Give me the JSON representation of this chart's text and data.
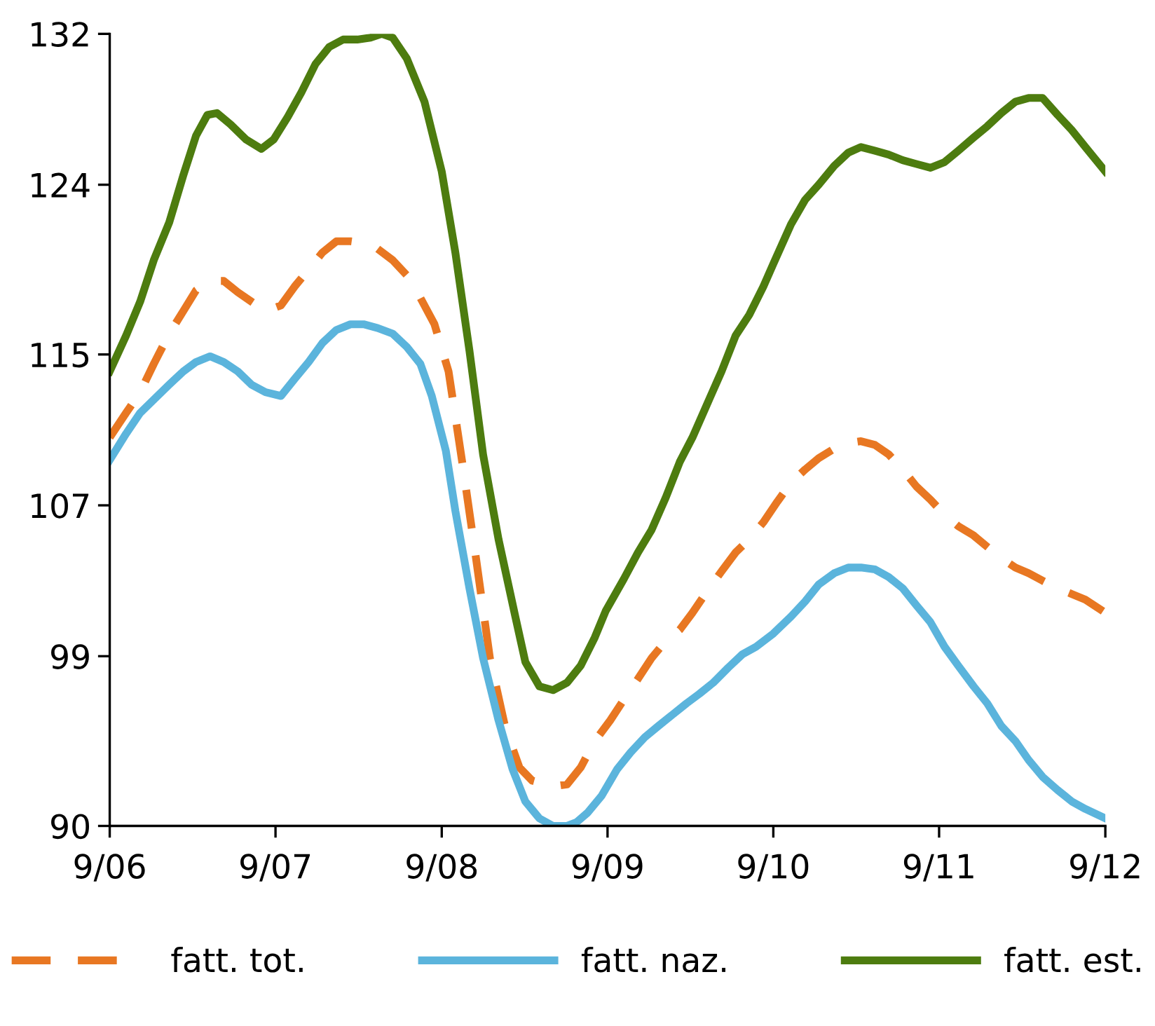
{
  "chart_data": {
    "type": "line",
    "xlim": [
      "2006-09-01",
      "2012-09-01"
    ],
    "ylim": [
      90,
      132
    ],
    "xticks": [
      {
        "value": "2006-09-01",
        "label": "9/06"
      },
      {
        "value": "2007-09-01",
        "label": "9/07"
      },
      {
        "value": "2008-09-01",
        "label": "9/08"
      },
      {
        "value": "2009-09-01",
        "label": "9/09"
      },
      {
        "value": "2010-09-01",
        "label": "9/10"
      },
      {
        "value": "2011-09-01",
        "label": "9/11"
      },
      {
        "value": "2012-09-01",
        "label": "9/12"
      }
    ],
    "yticks": [
      90,
      99,
      107,
      115,
      124,
      132
    ],
    "grid": false,
    "legend": "bottom",
    "marker": "none",
    "series": [
      {
        "name": "fatt. tot.",
        "color": "#e87722",
        "line_style": "dashed",
        "x": [
          "2006-09-01",
          "2006-10-07",
          "2006-11-07",
          "2006-12-07",
          "2007-01-10",
          "2007-02-10",
          "2007-03-10",
          "2007-04-10",
          "2007-05-10",
          "2007-06-10",
          "2007-07-10",
          "2007-08-10",
          "2007-09-13",
          "2007-10-13",
          "2007-11-13",
          "2007-12-13",
          "2008-01-13",
          "2008-02-13",
          "2008-03-13",
          "2008-04-13",
          "2008-05-16",
          "2008-06-16",
          "2008-07-16",
          "2008-08-16",
          "2008-09-16",
          "2008-10-16",
          "2008-11-16",
          "2008-12-16",
          "2009-01-19",
          "2009-02-19",
          "2009-03-19",
          "2009-05-04",
          "2009-06-04",
          "2009-07-04",
          "2009-08-04",
          "2009-09-07",
          "2009-10-07",
          "2009-11-07",
          "2009-12-07",
          "2010-01-07",
          "2010-02-07",
          "2010-03-07",
          "2010-04-07",
          "2010-05-10",
          "2010-06-10",
          "2010-07-10",
          "2010-08-10",
          "2010-09-10",
          "2010-10-10",
          "2010-11-10",
          "2010-12-10",
          "2011-01-13",
          "2011-02-13",
          "2011-03-13",
          "2011-04-13",
          "2011-05-13",
          "2011-06-13",
          "2011-07-13",
          "2011-08-13",
          "2011-09-13",
          "2011-10-13",
          "2011-11-16",
          "2011-12-16",
          "2012-01-16",
          "2012-02-16",
          "2012-03-16",
          "2012-04-16",
          "2012-05-19",
          "2012-06-19",
          "2012-07-19",
          "2012-09-01"
        ],
        "values": [
          110.6,
          111.9,
          113.0,
          114.5,
          116.1,
          117.3,
          118.4,
          118.9,
          118.9,
          118.3,
          117.8,
          117.3,
          117.6,
          118.6,
          119.5,
          120.4,
          121.0,
          121.0,
          120.9,
          120.6,
          120.0,
          119.2,
          118.0,
          116.6,
          114.1,
          109.3,
          104.1,
          98.9,
          95.2,
          93.1,
          92.4,
          92.1,
          92.2,
          93.1,
          94.5,
          95.6,
          96.7,
          97.8,
          98.9,
          99.8,
          100.4,
          101.3,
          102.4,
          103.5,
          104.5,
          105.2,
          106.1,
          107.2,
          108.2,
          108.9,
          109.5,
          110.0,
          110.3,
          110.4,
          110.2,
          109.7,
          108.9,
          108.0,
          107.3,
          106.5,
          105.9,
          105.4,
          104.8,
          104.2,
          103.7,
          103.4,
          103.0,
          102.6,
          102.3,
          102.0,
          101.3
        ]
      },
      {
        "name": "fatt. naz.",
        "color": "#5bb4dc",
        "line_style": "solid",
        "x": [
          "2006-09-01",
          "2006-10-07",
          "2006-11-07",
          "2006-12-07",
          "2007-01-10",
          "2007-02-10",
          "2007-03-10",
          "2007-04-10",
          "2007-05-10",
          "2007-06-10",
          "2007-07-10",
          "2007-08-10",
          "2007-09-13",
          "2007-10-13",
          "2007-11-13",
          "2007-12-13",
          "2008-01-13",
          "2008-02-13",
          "2008-03-13",
          "2008-04-13",
          "2008-05-16",
          "2008-06-16",
          "2008-07-16",
          "2008-08-10",
          "2008-09-10",
          "2008-10-01",
          "2008-11-01",
          "2008-12-01",
          "2009-01-04",
          "2009-02-04",
          "2009-03-04",
          "2009-04-04",
          "2009-05-04",
          "2009-06-04",
          "2009-06-25",
          "2009-07-19",
          "2009-08-19",
          "2009-09-22",
          "2009-10-22",
          "2009-11-22",
          "2009-12-22",
          "2010-01-22",
          "2010-02-22",
          "2010-03-22",
          "2010-04-22",
          "2010-05-25",
          "2010-06-25",
          "2010-07-25",
          "2010-09-01",
          "2010-10-10",
          "2010-11-10",
          "2010-12-10",
          "2011-01-13",
          "2011-02-13",
          "2011-03-13",
          "2011-04-13",
          "2011-05-13",
          "2011-06-13",
          "2011-07-13",
          "2011-08-13",
          "2011-09-13",
          "2011-10-13",
          "2011-11-16",
          "2011-12-16",
          "2012-01-16",
          "2012-02-16",
          "2012-03-16",
          "2012-04-16",
          "2012-05-19",
          "2012-06-19",
          "2012-07-19",
          "2012-09-01"
        ],
        "values": [
          109.4,
          110.8,
          111.9,
          112.6,
          113.4,
          114.1,
          114.6,
          114.9,
          114.6,
          114.1,
          113.4,
          113.0,
          112.8,
          113.7,
          114.6,
          115.6,
          116.3,
          116.6,
          116.6,
          116.4,
          116.1,
          115.4,
          114.5,
          112.8,
          109.9,
          106.7,
          102.6,
          98.9,
          95.6,
          93.0,
          91.3,
          90.4,
          90.0,
          90.0,
          90.2,
          90.7,
          91.6,
          93.0,
          93.9,
          94.7,
          95.3,
          95.9,
          96.5,
          97.0,
          97.6,
          98.4,
          99.1,
          99.5,
          100.2,
          101.1,
          101.9,
          102.8,
          103.4,
          103.7,
          103.7,
          103.6,
          103.2,
          102.6,
          101.7,
          100.8,
          99.5,
          98.5,
          97.4,
          96.5,
          95.3,
          94.5,
          93.5,
          92.6,
          91.9,
          91.3,
          90.9,
          90.4
        ]
      },
      {
        "name": "fatt. est.",
        "color": "#4d7c0f",
        "line_style": "solid",
        "x": [
          "2006-09-01",
          "2006-10-07",
          "2006-11-07",
          "2006-12-07",
          "2007-01-10",
          "2007-02-10",
          "2007-03-10",
          "2007-04-04",
          "2007-04-25",
          "2007-05-25",
          "2007-06-28",
          "2007-08-01",
          "2007-08-28",
          "2007-09-28",
          "2007-10-28",
          "2007-11-28",
          "2007-12-28",
          "2008-01-28",
          "2008-02-28",
          "2008-03-28",
          "2008-04-22",
          "2008-05-16",
          "2008-06-16",
          "2008-07-25",
          "2008-09-01",
          "2008-10-01",
          "2008-11-01",
          "2008-12-01",
          "2009-01-04",
          "2009-02-10",
          "2009-03-04",
          "2009-04-04",
          "2009-05-04",
          "2009-06-04",
          "2009-07-04",
          "2009-08-04",
          "2009-08-28",
          "2009-10-07",
          "2009-11-07",
          "2009-12-07",
          "2010-01-07",
          "2010-02-07",
          "2010-03-07",
          "2010-04-07",
          "2010-05-10",
          "2010-06-10",
          "2010-07-10",
          "2010-08-10",
          "2010-09-01",
          "2010-10-10",
          "2010-11-10",
          "2010-12-10",
          "2011-01-13",
          "2011-02-13",
          "2011-03-13",
          "2011-04-13",
          "2011-05-13",
          "2011-06-13",
          "2011-07-13",
          "2011-08-13",
          "2011-09-13",
          "2011-10-13",
          "2011-11-16",
          "2011-12-16",
          "2012-01-16",
          "2012-02-16",
          "2012-03-16",
          "2012-04-16",
          "2012-05-19",
          "2012-06-19",
          "2012-07-19",
          "2012-09-01"
        ],
        "values": [
          114.1,
          116.0,
          117.8,
          120.0,
          122.0,
          124.5,
          126.6,
          127.7,
          127.8,
          127.2,
          126.4,
          125.9,
          126.4,
          127.6,
          128.9,
          130.4,
          131.3,
          131.7,
          131.7,
          131.8,
          132.0,
          131.8,
          130.7,
          128.4,
          124.7,
          120.4,
          115.2,
          109.7,
          105.2,
          101.1,
          98.7,
          97.4,
          97.2,
          97.6,
          98.5,
          100.0,
          101.4,
          103.1,
          104.5,
          105.7,
          107.4,
          109.3,
          110.6,
          112.3,
          114.1,
          116.0,
          117.1,
          118.6,
          119.8,
          121.9,
          123.2,
          124.0,
          125.0,
          125.7,
          126.0,
          125.8,
          125.6,
          125.3,
          125.1,
          124.9,
          125.2,
          125.8,
          126.5,
          127.1,
          127.8,
          128.4,
          128.6,
          128.6,
          127.7,
          126.9,
          126.0,
          124.7
        ]
      }
    ]
  }
}
